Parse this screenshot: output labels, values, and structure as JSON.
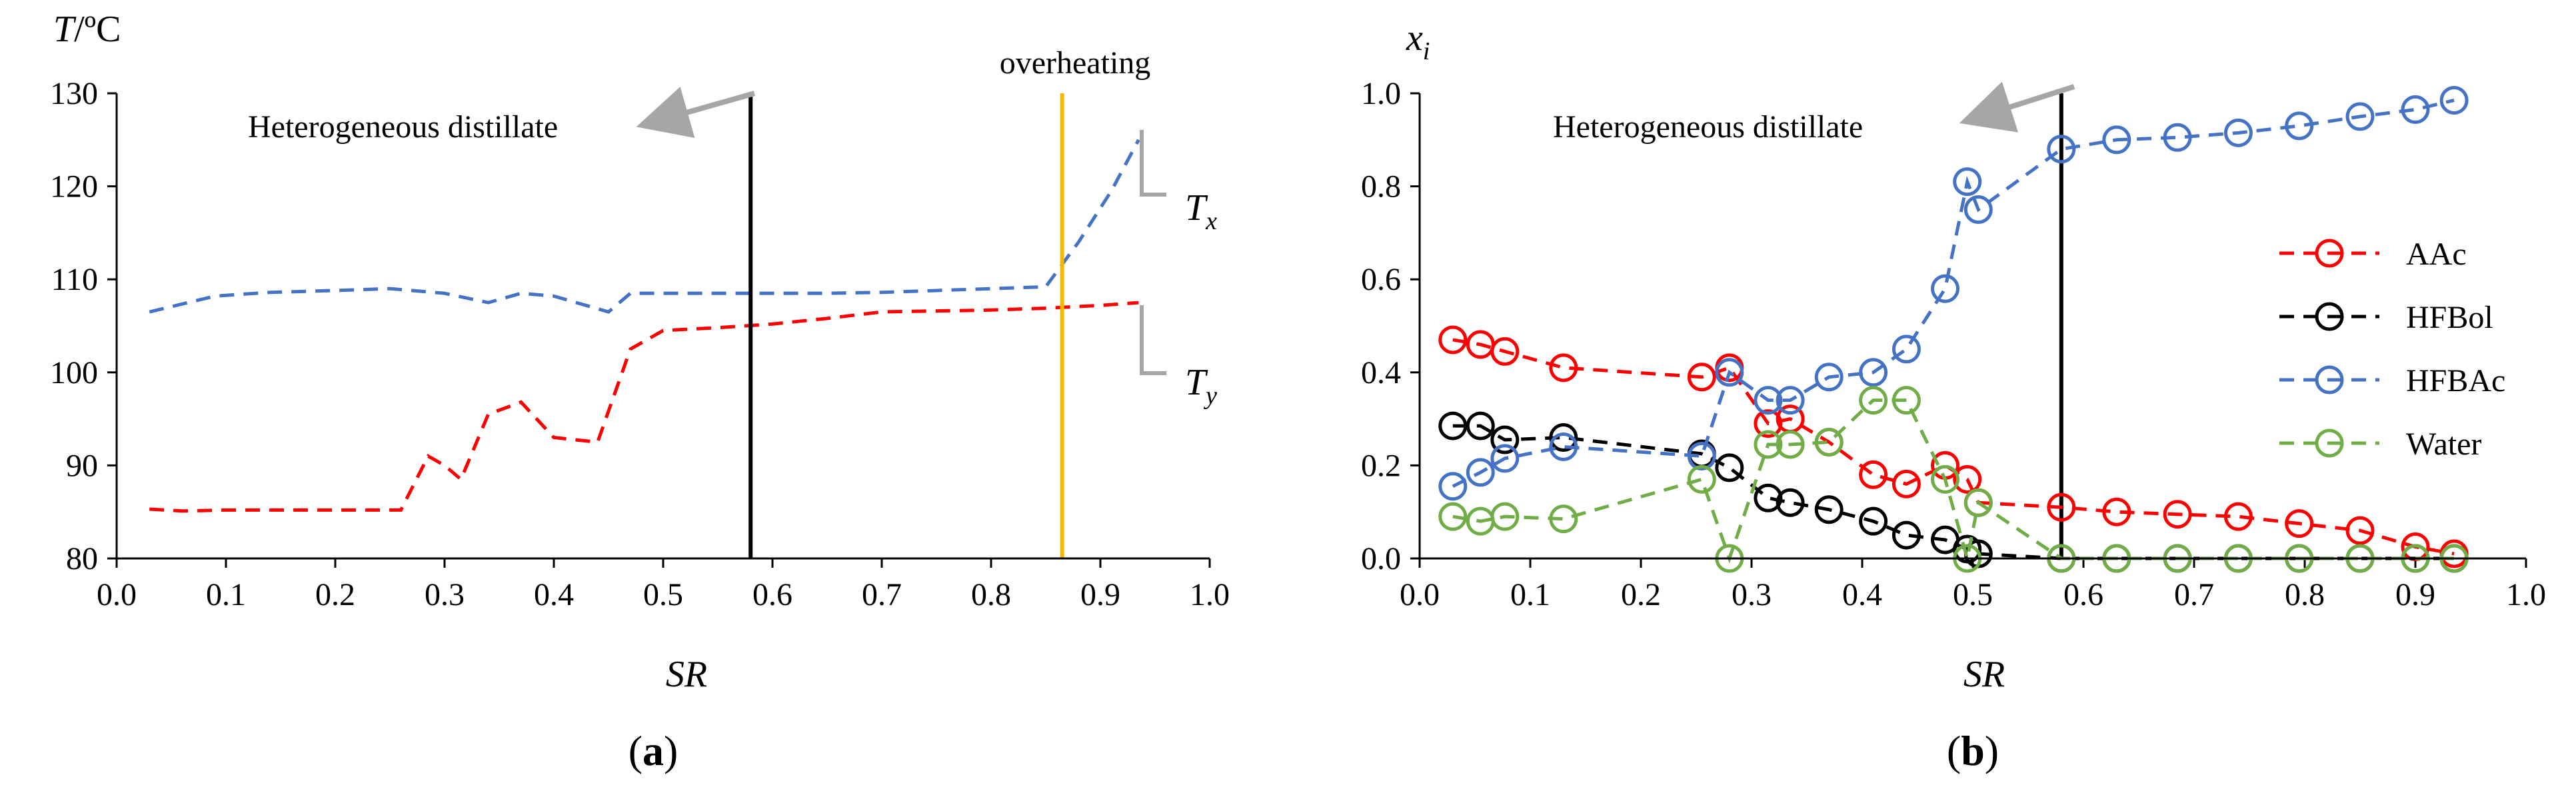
{
  "chart_data": [
    {
      "panel": "a",
      "type": "line",
      "panel_label": "(a)",
      "ylabel": "T/ºC",
      "xlabel": "SR",
      "xlim": [
        0.0,
        1.0
      ],
      "ylim": [
        80,
        130
      ],
      "x_ticks": [
        "0.0",
        "0.1",
        "0.2",
        "0.3",
        "0.4",
        "0.5",
        "0.6",
        "0.7",
        "0.8",
        "0.9",
        "1.0"
      ],
      "y_ticks": [
        "80",
        "90",
        "100",
        "110",
        "120",
        "130"
      ],
      "grid": false,
      "annotations": {
        "heterogeneous": "Heterogeneous distillate",
        "overheating": "overheating"
      },
      "vertical_lines": [
        {
          "x": 0.58,
          "color": "#000000"
        },
        {
          "x": 0.865,
          "color": "#f5b800"
        }
      ],
      "series": [
        {
          "name": "Tx",
          "label_main": "T",
          "label_sub": "x",
          "color": "#4472c4",
          "style": "dashed",
          "x": [
            0.03,
            0.09,
            0.14,
            0.2,
            0.25,
            0.3,
            0.34,
            0.37,
            0.4,
            0.45,
            0.47,
            0.5,
            0.55,
            0.6,
            0.65,
            0.7,
            0.75,
            0.8,
            0.85,
            0.88,
            0.91,
            0.935
          ],
          "y": [
            106.5,
            108.2,
            108.6,
            108.8,
            109.0,
            108.5,
            107.5,
            108.5,
            108.2,
            106.5,
            108.5,
            108.5,
            108.5,
            108.5,
            108.5,
            108.6,
            108.8,
            109.0,
            109.2,
            114.0,
            119.5,
            125.0
          ]
        },
        {
          "name": "Ty",
          "label_main": "T",
          "label_sub": "y",
          "color": "#ff0000",
          "style": "dashed",
          "x": [
            0.03,
            0.06,
            0.1,
            0.15,
            0.2,
            0.26,
            0.285,
            0.3,
            0.315,
            0.34,
            0.37,
            0.4,
            0.44,
            0.47,
            0.5,
            0.55,
            0.6,
            0.65,
            0.7,
            0.75,
            0.8,
            0.85,
            0.9,
            0.935
          ],
          "y": [
            85.3,
            85.1,
            85.2,
            85.2,
            85.2,
            85.2,
            91.0,
            90.0,
            88.5,
            95.5,
            96.8,
            93.0,
            92.5,
            102.5,
            104.5,
            104.8,
            105.2,
            105.8,
            106.5,
            106.6,
            106.7,
            106.9,
            107.2,
            107.5
          ]
        }
      ]
    },
    {
      "panel": "b",
      "type": "line",
      "panel_label": "(b)",
      "ylabel": "xi",
      "ylabel_main": "x",
      "ylabel_sub": "i",
      "xlabel": "SR",
      "xlim": [
        0.0,
        1.0
      ],
      "ylim": [
        0.0,
        1.0
      ],
      "x_ticks": [
        "0.0",
        "0.1",
        "0.2",
        "0.3",
        "0.4",
        "0.5",
        "0.6",
        "0.7",
        "0.8",
        "0.9",
        "1.0"
      ],
      "y_ticks": [
        "0.0",
        "0.2",
        "0.4",
        "0.6",
        "0.8",
        "1.0"
      ],
      "grid": false,
      "legend_position": "right",
      "annotations": {
        "heterogeneous": "Heterogeneous distillate"
      },
      "vertical_lines": [
        {
          "x": 0.58,
          "color": "#000000"
        }
      ],
      "series": [
        {
          "name": "AAc",
          "color": "#ff0000",
          "x": [
            0.03,
            0.055,
            0.077,
            0.13,
            0.255,
            0.28,
            0.315,
            0.335,
            0.37,
            0.41,
            0.44,
            0.475,
            0.495,
            0.505,
            0.58,
            0.63,
            0.685,
            0.74,
            0.795,
            0.85,
            0.9,
            0.935
          ],
          "y": [
            0.47,
            0.46,
            0.445,
            0.41,
            0.39,
            0.41,
            0.29,
            0.3,
            0.25,
            0.18,
            0.16,
            0.2,
            0.17,
            0.12,
            0.11,
            0.1,
            0.095,
            0.09,
            0.075,
            0.06,
            0.025,
            0.01
          ]
        },
        {
          "name": "HFBol",
          "color": "#000000",
          "x": [
            0.03,
            0.055,
            0.077,
            0.13,
            0.255,
            0.28,
            0.315,
            0.335,
            0.37,
            0.41,
            0.44,
            0.475,
            0.495,
            0.505,
            0.58,
            0.63,
            0.685,
            0.74,
            0.795,
            0.85,
            0.9,
            0.935
          ],
          "y": [
            0.285,
            0.285,
            0.255,
            0.26,
            0.225,
            0.195,
            0.13,
            0.12,
            0.105,
            0.08,
            0.05,
            0.04,
            0.02,
            0.01,
            0.0,
            0.0,
            0.0,
            0.0,
            0.0,
            0.0,
            0.0,
            0.0
          ]
        },
        {
          "name": "HFBAc",
          "color": "#4472c4",
          "x": [
            0.03,
            0.055,
            0.077,
            0.13,
            0.255,
            0.28,
            0.315,
            0.335,
            0.37,
            0.41,
            0.44,
            0.475,
            0.495,
            0.505,
            0.58,
            0.63,
            0.685,
            0.74,
            0.795,
            0.85,
            0.9,
            0.935
          ],
          "y": [
            0.155,
            0.185,
            0.215,
            0.24,
            0.22,
            0.4,
            0.34,
            0.34,
            0.39,
            0.4,
            0.45,
            0.58,
            0.81,
            0.75,
            0.88,
            0.9,
            0.905,
            0.915,
            0.93,
            0.95,
            0.965,
            0.985
          ]
        },
        {
          "name": "Water",
          "color": "#70ad47",
          "x": [
            0.03,
            0.055,
            0.077,
            0.13,
            0.255,
            0.28,
            0.315,
            0.335,
            0.37,
            0.41,
            0.44,
            0.475,
            0.495,
            0.505,
            0.58,
            0.63,
            0.685,
            0.74,
            0.795,
            0.85,
            0.9,
            0.935
          ],
          "y": [
            0.09,
            0.08,
            0.09,
            0.085,
            0.17,
            0.0,
            0.245,
            0.245,
            0.25,
            0.34,
            0.34,
            0.17,
            0.0,
            0.12,
            0.0,
            0.0,
            0.0,
            0.0,
            0.0,
            0.0,
            0.0,
            0.0
          ]
        }
      ]
    }
  ]
}
